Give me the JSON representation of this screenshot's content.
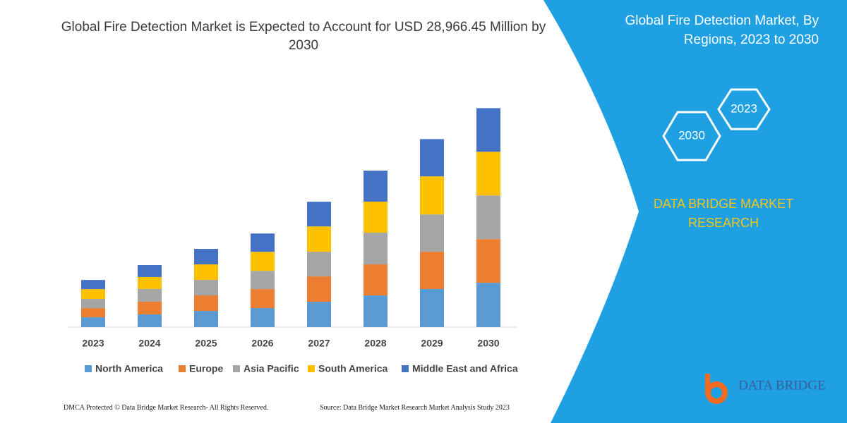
{
  "chart_data": {
    "type": "stacked_bar",
    "title": "Global Fire Detection Market is Expected to Account for USD 28,966.45 Million by 2030",
    "categories": [
      "2023",
      "2024",
      "2025",
      "2026",
      "2027",
      "2028",
      "2029",
      "2030"
    ],
    "series": [
      {
        "name": "North America",
        "color": "#5b9bd5",
        "values": [
          1300,
          1680,
          2140,
          2510,
          3350,
          4190,
          5030,
          5860
        ]
      },
      {
        "name": "Europe",
        "color": "#ed7d31",
        "values": [
          1210,
          1680,
          2050,
          2510,
          3350,
          4100,
          4930,
          5770
        ]
      },
      {
        "name": "Asia Pacific",
        "color": "#a5a5a5",
        "values": [
          1210,
          1680,
          2050,
          2420,
          3260,
          4190,
          4930,
          5770
        ]
      },
      {
        "name": "South America",
        "color": "#ffc000",
        "values": [
          1300,
          1580,
          2050,
          2510,
          3350,
          4100,
          5030,
          5770
        ]
      },
      {
        "name": "Middle East and Africa",
        "color": "#4472c4",
        "values": [
          1210,
          1580,
          2050,
          2420,
          3260,
          4100,
          4930,
          5770
        ]
      }
    ],
    "ylim": [
      0,
      30000
    ],
    "legend": "bottom"
  },
  "side_panel": {
    "title": "Global Fire Detection Market, By Regions, 2023 to 2030",
    "hex_labels": [
      "2023",
      "2030"
    ],
    "brand": "DATA BRIDGE MARKET RESEARCH",
    "logo": "DATA BRIDGE"
  },
  "footer": {
    "left": "DMCA Protected © Data Bridge Market Research- All Rights Reserved.",
    "right": "Source: Data Bridge Market Research Market Analysis Study 2023"
  }
}
